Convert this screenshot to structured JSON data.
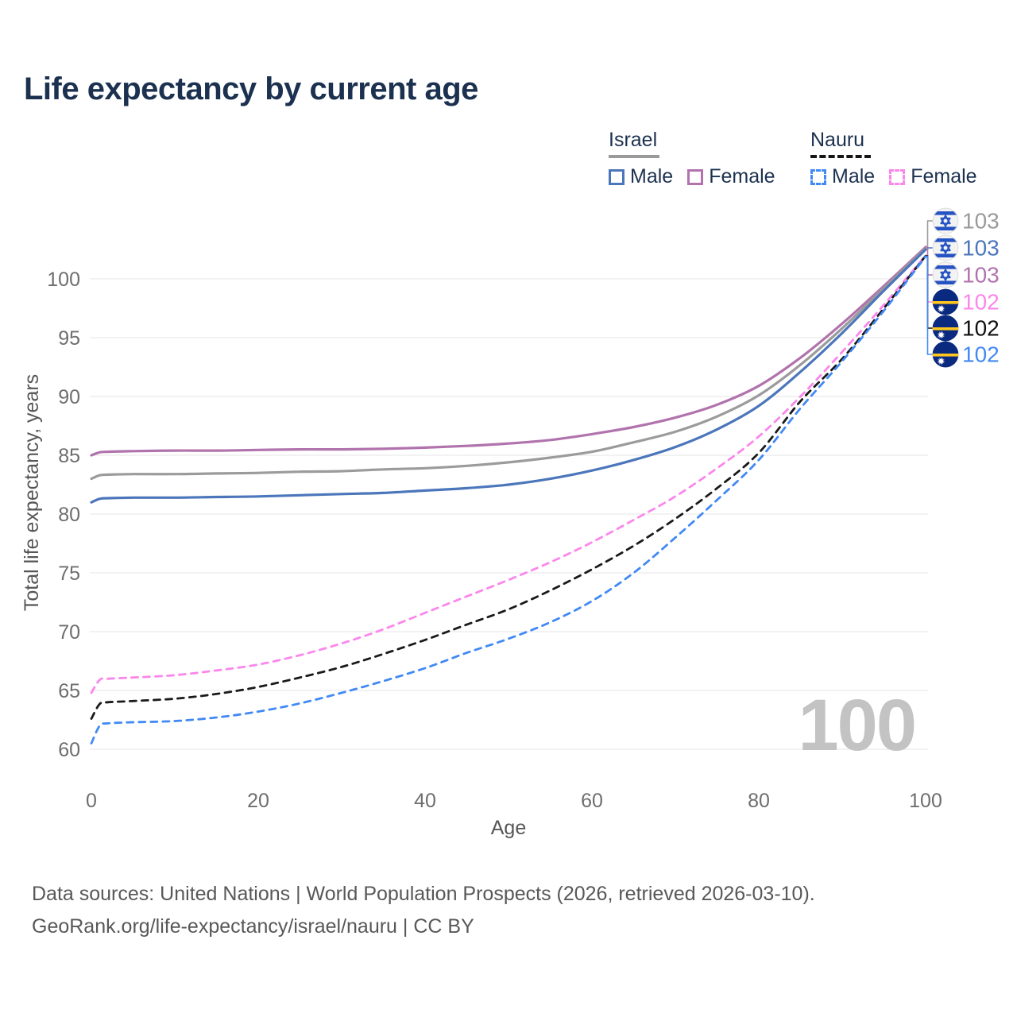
{
  "title": "Life expectancy by current age",
  "legend": {
    "groups": [
      {
        "label": "Israel",
        "line_style": "solid",
        "items": [
          {
            "label": "Male",
            "color": "#4b76bb"
          },
          {
            "label": "Female",
            "color": "#b173ad"
          }
        ]
      },
      {
        "label": "Nauru",
        "line_style": "dashed",
        "items": [
          {
            "label": "Male",
            "color": "#4189f5"
          },
          {
            "label": "Female",
            "color": "#fb86ec"
          }
        ]
      }
    ]
  },
  "watermark_current_age": "100",
  "footer": {
    "line1": "Data sources: United Nations | World Population Prospects (2026, retrieved 2026-03-10).",
    "line2": "GeoRank.org/life-expectancy/israel/nauru | CC BY"
  },
  "chart_data": {
    "type": "line",
    "title": "Life expectancy by current age",
    "xlabel": "Age",
    "ylabel": "Total life expectancy, years",
    "xlim": [
      0,
      100
    ],
    "ylim": [
      58.5,
      104.5
    ],
    "x_ticks": [
      0,
      20,
      40,
      60,
      80,
      100
    ],
    "y_ticks": [
      60,
      65,
      70,
      75,
      80,
      85,
      90,
      95,
      100
    ],
    "grid": "horizontal-only",
    "legend_position": "top-right",
    "axis_color": "#6e6e6e",
    "grid_color": "#ededed",
    "series": [
      {
        "id": "israel_female",
        "name": "Israel Female",
        "country": "Israel",
        "sex": "Female",
        "color": "#b173ad",
        "dash": false,
        "points": [
          [
            0,
            85.0
          ],
          [
            1,
            85.25
          ],
          [
            2,
            85.3
          ],
          [
            5,
            85.35
          ],
          [
            10,
            85.4
          ],
          [
            15,
            85.4
          ],
          [
            20,
            85.45
          ],
          [
            25,
            85.5
          ],
          [
            30,
            85.5
          ],
          [
            35,
            85.55
          ],
          [
            40,
            85.65
          ],
          [
            45,
            85.8
          ],
          [
            50,
            86.0
          ],
          [
            55,
            86.3
          ],
          [
            60,
            86.8
          ],
          [
            65,
            87.4
          ],
          [
            70,
            88.2
          ],
          [
            75,
            89.3
          ],
          [
            80,
            90.9
          ],
          [
            85,
            93.3
          ],
          [
            90,
            96.2
          ],
          [
            95,
            99.4
          ],
          [
            100,
            102.7
          ]
        ]
      },
      {
        "id": "israel_all",
        "name": "Israel Both sexes",
        "country": "Israel",
        "sex": "Both",
        "color": "#9b9b9b",
        "dash": false,
        "points": [
          [
            0,
            83.0
          ],
          [
            1,
            83.3
          ],
          [
            2,
            83.35
          ],
          [
            5,
            83.4
          ],
          [
            10,
            83.4
          ],
          [
            15,
            83.45
          ],
          [
            20,
            83.5
          ],
          [
            25,
            83.6
          ],
          [
            30,
            83.65
          ],
          [
            35,
            83.8
          ],
          [
            40,
            83.9
          ],
          [
            45,
            84.1
          ],
          [
            50,
            84.4
          ],
          [
            55,
            84.8
          ],
          [
            60,
            85.3
          ],
          [
            65,
            86.1
          ],
          [
            70,
            87.0
          ],
          [
            75,
            88.3
          ],
          [
            80,
            90.1
          ],
          [
            85,
            92.7
          ],
          [
            90,
            95.8
          ],
          [
            95,
            99.2
          ],
          [
            100,
            102.6
          ]
        ]
      },
      {
        "id": "israel_male",
        "name": "Israel Male",
        "country": "Israel",
        "sex": "Male",
        "color": "#4b76bb",
        "dash": false,
        "points": [
          [
            0,
            81.0
          ],
          [
            1,
            81.3
          ],
          [
            2,
            81.35
          ],
          [
            5,
            81.4
          ],
          [
            10,
            81.4
          ],
          [
            15,
            81.45
          ],
          [
            20,
            81.5
          ],
          [
            25,
            81.6
          ],
          [
            30,
            81.7
          ],
          [
            35,
            81.8
          ],
          [
            40,
            82.0
          ],
          [
            45,
            82.2
          ],
          [
            50,
            82.5
          ],
          [
            55,
            83.0
          ],
          [
            60,
            83.7
          ],
          [
            65,
            84.6
          ],
          [
            70,
            85.7
          ],
          [
            75,
            87.2
          ],
          [
            80,
            89.2
          ],
          [
            85,
            92.1
          ],
          [
            90,
            95.4
          ],
          [
            95,
            99.0
          ],
          [
            100,
            102.5
          ]
        ]
      },
      {
        "id": "nauru_female",
        "name": "Nauru Female",
        "country": "Nauru",
        "sex": "Female",
        "color": "#fb86ec",
        "dash": true,
        "points": [
          [
            0,
            64.8
          ],
          [
            1,
            65.9
          ],
          [
            2,
            66.0
          ],
          [
            5,
            66.1
          ],
          [
            10,
            66.3
          ],
          [
            15,
            66.7
          ],
          [
            20,
            67.2
          ],
          [
            25,
            68.0
          ],
          [
            30,
            69.0
          ],
          [
            35,
            70.2
          ],
          [
            40,
            71.6
          ],
          [
            45,
            73.0
          ],
          [
            50,
            74.4
          ],
          [
            55,
            75.9
          ],
          [
            60,
            77.6
          ],
          [
            65,
            79.5
          ],
          [
            70,
            81.5
          ],
          [
            75,
            83.9
          ],
          [
            80,
            86.6
          ],
          [
            85,
            90.0
          ],
          [
            90,
            93.8
          ],
          [
            95,
            97.8
          ],
          [
            100,
            102.0
          ]
        ]
      },
      {
        "id": "nauru_all",
        "name": "Nauru Both sexes",
        "country": "Nauru",
        "sex": "Both",
        "color": "#1a1a1a",
        "dash": true,
        "points": [
          [
            0,
            62.6
          ],
          [
            1,
            63.85
          ],
          [
            2,
            64.0
          ],
          [
            5,
            64.1
          ],
          [
            10,
            64.3
          ],
          [
            15,
            64.7
          ],
          [
            20,
            65.3
          ],
          [
            25,
            66.1
          ],
          [
            30,
            67.0
          ],
          [
            35,
            68.1
          ],
          [
            40,
            69.3
          ],
          [
            45,
            70.6
          ],
          [
            50,
            71.9
          ],
          [
            55,
            73.5
          ],
          [
            60,
            75.3
          ],
          [
            65,
            77.3
          ],
          [
            70,
            79.6
          ],
          [
            75,
            82.2
          ],
          [
            80,
            85.2
          ],
          [
            85,
            89.6
          ],
          [
            90,
            93.2
          ],
          [
            95,
            97.5
          ],
          [
            100,
            101.95
          ]
        ]
      },
      {
        "id": "nauru_male",
        "name": "Nauru Male",
        "country": "Nauru",
        "sex": "Male",
        "color": "#4189f5",
        "dash": true,
        "points": [
          [
            0,
            60.5
          ],
          [
            1,
            62.0
          ],
          [
            2,
            62.2
          ],
          [
            5,
            62.3
          ],
          [
            10,
            62.4
          ],
          [
            15,
            62.7
          ],
          [
            20,
            63.2
          ],
          [
            25,
            63.9
          ],
          [
            30,
            64.8
          ],
          [
            35,
            65.8
          ],
          [
            40,
            66.9
          ],
          [
            45,
            68.2
          ],
          [
            50,
            69.4
          ],
          [
            55,
            70.8
          ],
          [
            60,
            72.6
          ],
          [
            65,
            75.0
          ],
          [
            70,
            78.0
          ],
          [
            75,
            81.2
          ],
          [
            80,
            84.6
          ],
          [
            85,
            89.0
          ],
          [
            90,
            93.0
          ],
          [
            95,
            97.3
          ],
          [
            100,
            101.9
          ]
        ]
      }
    ],
    "end_labels": [
      {
        "series_id": "israel_all",
        "value": "103",
        "color": "#9a9a9a",
        "flag": "israel"
      },
      {
        "series_id": "israel_male",
        "value": "103",
        "color": "#4b76bb",
        "flag": "israel"
      },
      {
        "series_id": "israel_female",
        "value": "103",
        "color": "#b173ad",
        "flag": "israel"
      },
      {
        "series_id": "nauru_female",
        "value": "102",
        "color": "#fb86ec",
        "flag": "nauru"
      },
      {
        "series_id": "nauru_all",
        "value": "102",
        "color": "#111111",
        "flag": "nauru"
      },
      {
        "series_id": "nauru_male",
        "value": "102",
        "color": "#4189f5",
        "flag": "nauru"
      }
    ]
  }
}
